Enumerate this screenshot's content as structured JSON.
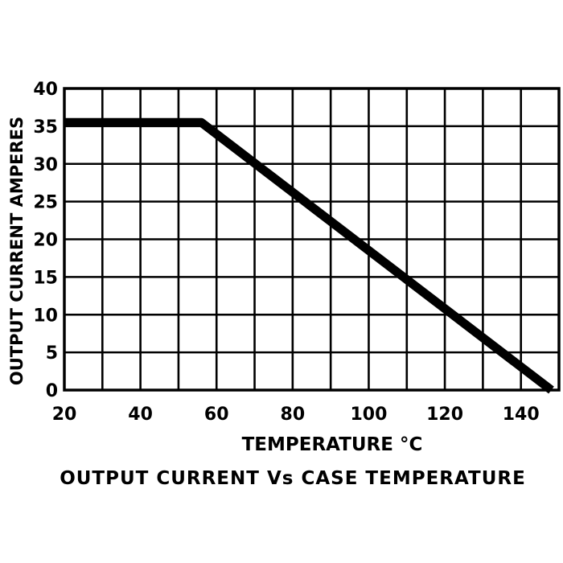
{
  "chart_data": {
    "type": "line",
    "title": "OUTPUT CURRENT Vs CASE TEMPERATURE",
    "xlabel": "TEMPERATURE °C",
    "ylabel": "OUTPUT CURRENT AMPERES",
    "xlim": [
      20,
      150
    ],
    "ylim": [
      0,
      40
    ],
    "xticks": [
      20,
      40,
      60,
      80,
      100,
      120,
      140
    ],
    "yticks": [
      0,
      5,
      10,
      15,
      20,
      25,
      30,
      35,
      40
    ],
    "xgrid_step": 10,
    "ygrid_step": 5,
    "grid": true,
    "series": [
      {
        "x": [
          20,
          56,
          148
        ],
        "y": [
          35.5,
          35.5,
          0
        ]
      }
    ]
  }
}
